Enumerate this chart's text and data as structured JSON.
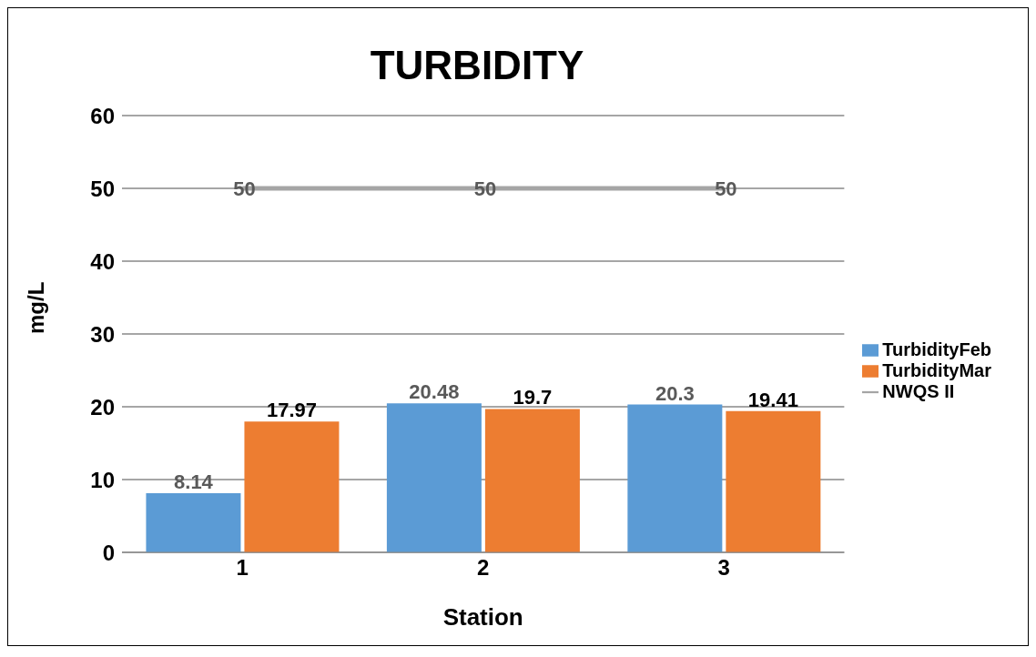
{
  "chart_data": {
    "type": "bar",
    "title": "TURBIDITY",
    "xlabel": "Station",
    "ylabel": "mg/L",
    "categories": [
      "1",
      "2",
      "3"
    ],
    "series": [
      {
        "name": "TurbidityFeb",
        "color": "#5b9bd5",
        "values": [
          8.14,
          20.48,
          20.3
        ]
      },
      {
        "name": "TurbidityMar",
        "color": "#ed7d31",
        "values": [
          17.97,
          19.7,
          19.41
        ]
      },
      {
        "name": "NWQS II",
        "type": "line",
        "color": "#a5a5a5",
        "values": [
          50,
          50,
          50
        ]
      }
    ],
    "ylim": [
      0,
      60
    ],
    "yticks": [
      0,
      10,
      20,
      30,
      40,
      50,
      60
    ],
    "grid": "y",
    "legend": "right",
    "data_labels": true,
    "marker": "none"
  }
}
